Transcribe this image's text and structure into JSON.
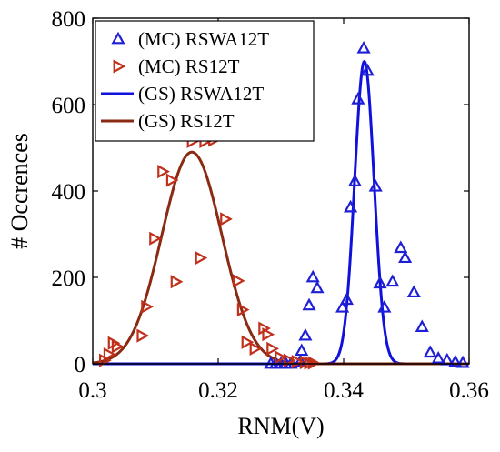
{
  "chart_data": {
    "type": "scatter",
    "title": "",
    "xlabel": "RNM(V)",
    "ylabel": "# Occrences",
    "xlim": [
      0.3,
      0.36
    ],
    "ylim": [
      0,
      800
    ],
    "xticks": [
      0.3,
      0.32,
      0.34,
      0.36
    ],
    "xtick_labels": [
      "0.3",
      "0.32",
      "0.34",
      "0.36"
    ],
    "yticks": [
      0,
      200,
      400,
      600,
      800
    ],
    "ytick_labels": [
      "0",
      "200",
      "400",
      "600",
      "800"
    ],
    "grid": false,
    "legend_position": "top-left",
    "series": [
      {
        "name": "(MC) RSWA12T",
        "kind": "scatter",
        "marker": "triangle-up",
        "color": "#1f1fd6",
        "points": [
          [
            0.3284,
            0
          ],
          [
            0.3292,
            0
          ],
          [
            0.33,
            0
          ],
          [
            0.3308,
            0
          ],
          [
            0.3316,
            0
          ],
          [
            0.3331,
            5
          ],
          [
            0.3333,
            30
          ],
          [
            0.3339,
            65
          ],
          [
            0.3345,
            135
          ],
          [
            0.3351,
            200
          ],
          [
            0.3358,
            175
          ],
          [
            0.3398,
            130
          ],
          [
            0.3405,
            148
          ],
          [
            0.3411,
            362
          ],
          [
            0.3418,
            422
          ],
          [
            0.3423,
            612
          ],
          [
            0.3432,
            730
          ],
          [
            0.3438,
            678
          ],
          [
            0.3451,
            410
          ],
          [
            0.3458,
            186
          ],
          [
            0.3465,
            130
          ],
          [
            0.3478,
            190
          ],
          [
            0.3491,
            268
          ],
          [
            0.3498,
            245
          ],
          [
            0.3512,
            165
          ],
          [
            0.3525,
            85
          ],
          [
            0.3538,
            26
          ],
          [
            0.3551,
            12
          ],
          [
            0.3565,
            8
          ],
          [
            0.3578,
            4
          ],
          [
            0.359,
            2
          ]
        ]
      },
      {
        "name": "(MC) RS12T",
        "kind": "scatter",
        "marker": "triangle-right",
        "color": "#c0301b",
        "points": [
          [
            0.3018,
            8
          ],
          [
            0.3025,
            22
          ],
          [
            0.3032,
            48
          ],
          [
            0.3038,
            40
          ],
          [
            0.3078,
            65
          ],
          [
            0.3085,
            132
          ],
          [
            0.3098,
            290
          ],
          [
            0.3111,
            445
          ],
          [
            0.3125,
            425
          ],
          [
            0.3132,
            190
          ],
          [
            0.3158,
            515
          ],
          [
            0.3171,
            245
          ],
          [
            0.3178,
            515
          ],
          [
            0.3192,
            518
          ],
          [
            0.3211,
            335
          ],
          [
            0.3231,
            192
          ],
          [
            0.3238,
            125
          ],
          [
            0.3245,
            50
          ],
          [
            0.3258,
            35
          ],
          [
            0.3272,
            82
          ],
          [
            0.3278,
            68
          ],
          [
            0.3285,
            35
          ],
          [
            0.3298,
            15
          ],
          [
            0.3312,
            8
          ],
          [
            0.3325,
            5
          ],
          [
            0.3338,
            3
          ],
          [
            0.3345,
            2
          ],
          [
            0.3351,
            2
          ]
        ]
      },
      {
        "name": "(GS) RSWA12T",
        "kind": "gaussian-line",
        "color": "#1111dd",
        "mean": 0.3433,
        "sigma": 0.00155,
        "peak": 700
      },
      {
        "name": "(GS) RS12T",
        "kind": "gaussian-line",
        "color": "#8b2a12",
        "mean": 0.3158,
        "sigma": 0.0048,
        "peak": 490
      }
    ]
  }
}
